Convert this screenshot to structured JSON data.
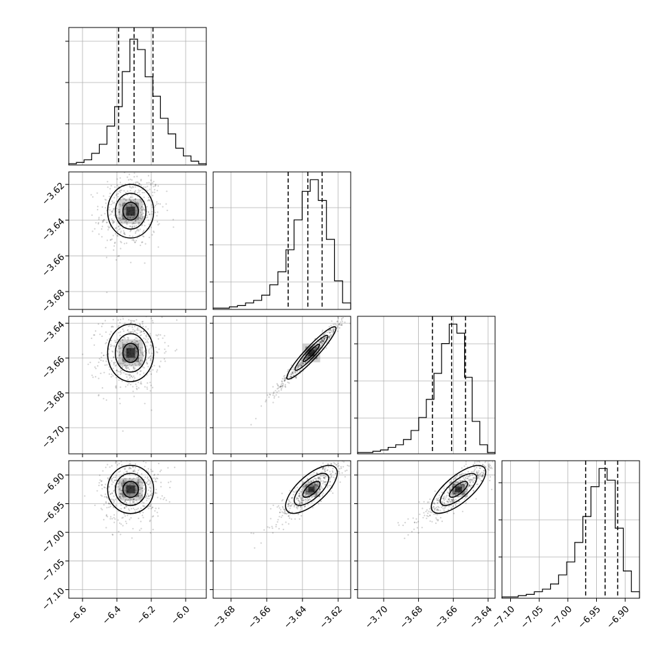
{
  "chart_data": {
    "type": "corner",
    "grid": true,
    "colors": {
      "line": "#000000",
      "grid": "#b0b0b0",
      "points": "#555555",
      "background": "#ffffff"
    },
    "parameters": [
      {
        "range": [
          -6.68,
          -5.88
        ],
        "ticks": [
          -6.6,
          -6.4,
          -6.2,
          -6.0
        ],
        "tick_labels": [
          "−6.6",
          "−6.4",
          "−6.2",
          "−6.0"
        ],
        "quantiles": [
          -6.39,
          -6.3,
          -6.19
        ],
        "hist": [
          0.01,
          0.02,
          0.04,
          0.09,
          0.16,
          0.3,
          0.45,
          0.72,
          0.97,
          0.89,
          0.68,
          0.53,
          0.36,
          0.24,
          0.13,
          0.07,
          0.03,
          0.01
        ],
        "center": [
          -6.32
        ],
        "marg_ticks_y": [
          0.3,
          0.6,
          0.9
        ]
      },
      {
        "range": [
          -3.69,
          -3.613
        ],
        "ticks": [
          -3.68,
          -3.66,
          -3.64,
          -3.62
        ],
        "tick_labels": [
          "−3.68",
          "−3.66",
          "−3.64",
          "−3.62"
        ],
        "quantiles": [
          -3.648,
          -3.637,
          -3.629
        ],
        "hist": [
          0.01,
          0.01,
          0.02,
          0.03,
          0.05,
          0.07,
          0.11,
          0.19,
          0.29,
          0.46,
          0.69,
          0.91,
          1.0,
          0.84,
          0.54,
          0.22,
          0.05
        ],
        "marg_ticks_y": [
          0.2,
          0.47,
          0.74
        ]
      },
      {
        "range": [
          -3.715,
          -3.636
        ],
        "ticks": [
          -3.7,
          -3.68,
          -3.66,
          -3.64
        ],
        "tick_labels": [
          "−3.70",
          "−3.68",
          "−3.66",
          "−3.64"
        ],
        "quantiles": [
          -3.672,
          -3.661,
          -3.653
        ],
        "hist": [
          0.01,
          0.01,
          0.02,
          0.03,
          0.05,
          0.07,
          0.11,
          0.18,
          0.28,
          0.42,
          0.62,
          0.85,
          1.0,
          0.93,
          0.59,
          0.25,
          0.07,
          0.01
        ],
        "marg_ticks_y": [
          0.26,
          0.53,
          0.8
        ]
      },
      {
        "range": [
          -7.115,
          -6.875
        ],
        "ticks": [
          -7.1,
          -7.05,
          -7.0,
          -6.95,
          -6.9
        ],
        "tick_labels": [
          "−7.10",
          "−7.05",
          "−7.00",
          "−6.95",
          "−6.90"
        ],
        "quantiles": [
          -6.969,
          -6.935,
          -6.913
        ],
        "hist": [
          0.01,
          0.01,
          0.02,
          0.03,
          0.05,
          0.07,
          0.11,
          0.18,
          0.28,
          0.43,
          0.63,
          0.86,
          1.0,
          0.91,
          0.54,
          0.21,
          0.05
        ],
        "marg_ticks_y": [
          0.3,
          0.57,
          0.84
        ]
      }
    ],
    "correlations": {
      "0_1": 0.1,
      "0_2": 0.1,
      "0_3": 0.05,
      "1_2": 0.98,
      "1_3": 0.88,
      "2_3": 0.9
    },
    "modes": [
      -6.32,
      -3.635,
      -3.657,
      -6.925
    ],
    "spreads": [
      0.085,
      0.01,
      0.011,
      0.028
    ],
    "contour_levels": [
      0.5,
      1.0,
      1.5
    ]
  }
}
